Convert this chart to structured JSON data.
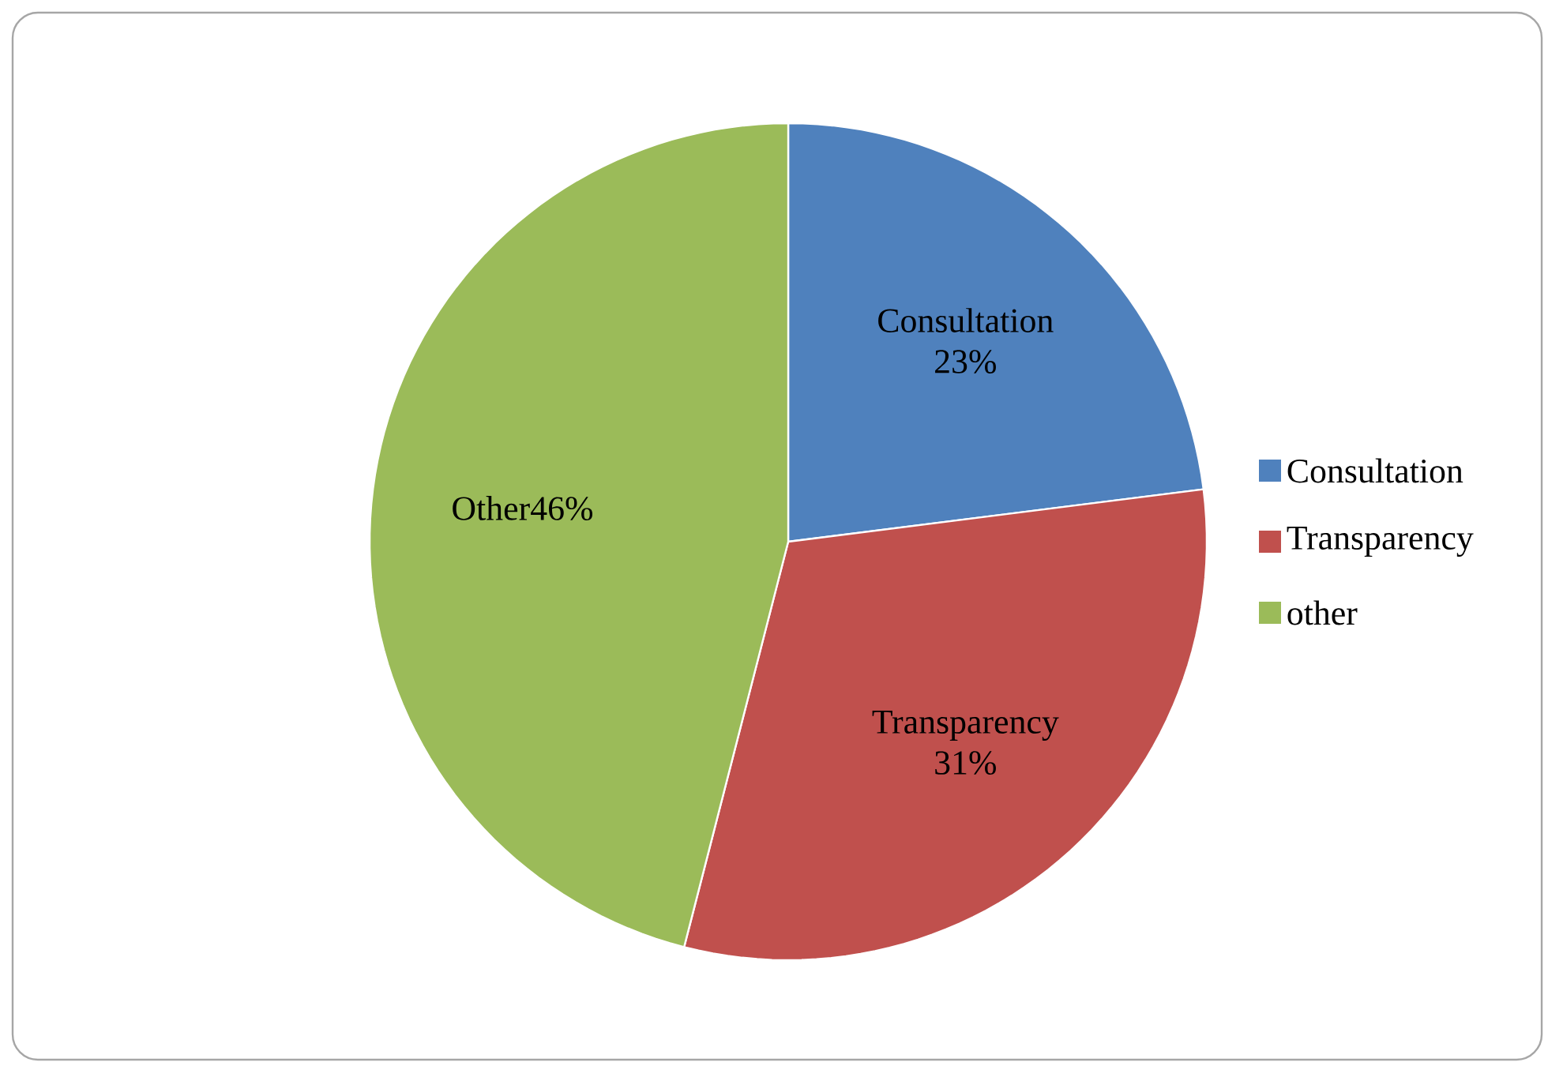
{
  "chart_data": {
    "type": "pie",
    "categories": [
      "Consultation",
      "Transparency",
      "other"
    ],
    "values": [
      23,
      31,
      46
    ],
    "colors": [
      "#4f81bd",
      "#c0504d",
      "#9bbb59"
    ],
    "value_labels": [
      "Consultation 23%",
      "Transparency 31%",
      "Other46%"
    ],
    "legend": "right"
  }
}
